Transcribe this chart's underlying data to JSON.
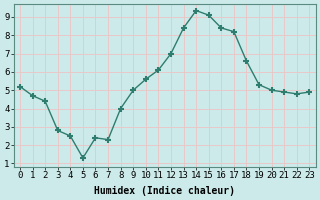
{
  "x": [
    0,
    1,
    2,
    3,
    4,
    5,
    6,
    7,
    8,
    9,
    10,
    11,
    12,
    13,
    14,
    15,
    16,
    17,
    18,
    19,
    20,
    21,
    22,
    23
  ],
  "y": [
    5.2,
    4.7,
    4.4,
    2.8,
    2.5,
    1.3,
    2.4,
    2.3,
    4.0,
    5.0,
    5.6,
    6.1,
    7.0,
    8.4,
    9.35,
    9.1,
    8.4,
    8.2,
    6.6,
    5.3,
    5.0,
    4.9,
    4.8,
    4.9
  ],
  "xlabel": "Humidex (Indice chaleur)",
  "xlim": [
    -0.5,
    23.5
  ],
  "ylim": [
    0.8,
    9.7
  ],
  "yticks": [
    1,
    2,
    3,
    4,
    5,
    6,
    7,
    8,
    9
  ],
  "xticks": [
    0,
    1,
    2,
    3,
    4,
    5,
    6,
    7,
    8,
    9,
    10,
    11,
    12,
    13,
    14,
    15,
    16,
    17,
    18,
    19,
    20,
    21,
    22,
    23
  ],
  "line_color": "#2e7d6e",
  "marker": "+",
  "marker_size": 5,
  "marker_lw": 1.5,
  "line_width": 1.0,
  "bg_color": "#cceaea",
  "grid_color": "#e8c8c8",
  "label_fontsize": 7,
  "tick_fontsize": 6.5
}
